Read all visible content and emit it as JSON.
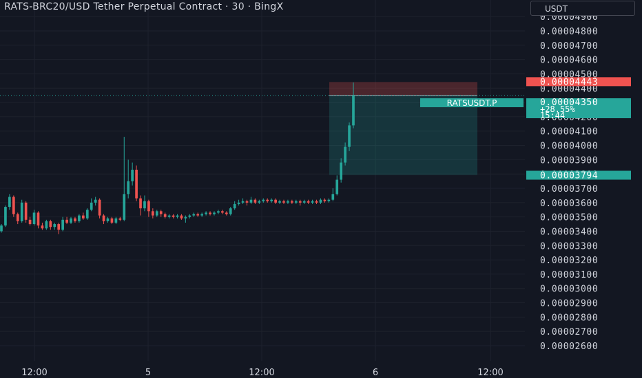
{
  "header": {
    "title": "RATS-BRC20/USD Tether Perpetual Contract · 30 · BingX",
    "currency": "USDT"
  },
  "colors": {
    "background": "#131722",
    "up": "#26a69a",
    "down": "#ef5350",
    "grid": "#1e222d",
    "text": "#d1d4dc"
  },
  "chart_data": {
    "type": "candlestick",
    "ylim": [
      2.6e-05,
      4.925e-05
    ],
    "y_ticks": [
      "0.00004900",
      "0.00004800",
      "0.00004700",
      "0.00004600",
      "0.00004500",
      "0.00004400",
      "0.00004300",
      "0.00004200",
      "0.00004100",
      "0.00004000",
      "0.00003900",
      "0.00003800",
      "0.00003700",
      "0.00003600",
      "0.00003500",
      "0.00003400",
      "0.00003300",
      "0.00003200",
      "0.00003100",
      "0.00003000",
      "0.00002900",
      "0.00002800",
      "0.00002700",
      "0.00002600"
    ],
    "x_ticks": [
      "12:00",
      "5",
      "12:00",
      "6",
      "12:00"
    ],
    "candles": [
      [
        3.4,
        3.44,
        3.45,
        3.39
      ],
      [
        3.44,
        3.57,
        3.58,
        3.43
      ],
      [
        3.57,
        3.64,
        3.66,
        3.55
      ],
      [
        3.64,
        3.52,
        3.65,
        3.5
      ],
      [
        3.52,
        3.47,
        3.53,
        3.45
      ],
      [
        3.47,
        3.6,
        3.62,
        3.46
      ],
      [
        3.6,
        3.48,
        3.61,
        3.46
      ],
      [
        3.48,
        3.45,
        3.5,
        3.44
      ],
      [
        3.45,
        3.53,
        3.55,
        3.44
      ],
      [
        3.53,
        3.44,
        3.54,
        3.42
      ],
      [
        3.44,
        3.42,
        3.46,
        3.41
      ],
      [
        3.42,
        3.47,
        3.48,
        3.41
      ],
      [
        3.47,
        3.43,
        3.48,
        3.41
      ],
      [
        3.43,
        3.45,
        3.46,
        3.41
      ],
      [
        3.45,
        3.41,
        3.46,
        3.38
      ],
      [
        3.41,
        3.48,
        3.5,
        3.4
      ],
      [
        3.48,
        3.46,
        3.5,
        3.45
      ],
      [
        3.46,
        3.49,
        3.5,
        3.45
      ],
      [
        3.49,
        3.47,
        3.5,
        3.46
      ],
      [
        3.47,
        3.51,
        3.52,
        3.46
      ],
      [
        3.51,
        3.49,
        3.53,
        3.48
      ],
      [
        3.49,
        3.55,
        3.56,
        3.48
      ],
      [
        3.55,
        3.6,
        3.63,
        3.54
      ],
      [
        3.6,
        3.62,
        3.64,
        3.58
      ],
      [
        3.62,
        3.51,
        3.63,
        3.49
      ],
      [
        3.51,
        3.47,
        3.52,
        3.45
      ],
      [
        3.47,
        3.49,
        3.5,
        3.46
      ],
      [
        3.49,
        3.46,
        3.5,
        3.45
      ],
      [
        3.46,
        3.49,
        3.5,
        3.45
      ],
      [
        3.49,
        3.48,
        3.5,
        3.47
      ],
      [
        3.48,
        3.66,
        4.06,
        3.47
      ],
      [
        3.66,
        3.75,
        3.9,
        3.63
      ],
      [
        3.75,
        3.83,
        3.88,
        3.72
      ],
      [
        3.83,
        3.63,
        3.86,
        3.61
      ],
      [
        3.63,
        3.56,
        3.65,
        3.51
      ],
      [
        3.56,
        3.61,
        3.65,
        3.54
      ],
      [
        3.61,
        3.54,
        3.62,
        3.5
      ],
      [
        3.54,
        3.51,
        3.56,
        3.49
      ],
      [
        3.51,
        3.54,
        3.55,
        3.5
      ],
      [
        3.54,
        3.52,
        3.55,
        3.5
      ],
      [
        3.52,
        3.5,
        3.53,
        3.49
      ],
      [
        3.5,
        3.51,
        3.52,
        3.49
      ],
      [
        3.51,
        3.5,
        3.52,
        3.49
      ],
      [
        3.5,
        3.51,
        3.52,
        3.49
      ],
      [
        3.51,
        3.49,
        3.52,
        3.48
      ],
      [
        3.49,
        3.5,
        3.51,
        3.46
      ],
      [
        3.5,
        3.51,
        3.52,
        3.49
      ],
      [
        3.51,
        3.52,
        3.53,
        3.5
      ],
      [
        3.52,
        3.51,
        3.53,
        3.5
      ],
      [
        3.51,
        3.52,
        3.53,
        3.5
      ],
      [
        3.52,
        3.53,
        3.54,
        3.51
      ],
      [
        3.53,
        3.52,
        3.54,
        3.51
      ],
      [
        3.52,
        3.53,
        3.54,
        3.51
      ],
      [
        3.53,
        3.54,
        3.55,
        3.52
      ],
      [
        3.54,
        3.53,
        3.55,
        3.52
      ],
      [
        3.53,
        3.52,
        3.54,
        3.51
      ],
      [
        3.52,
        3.56,
        3.57,
        3.51
      ],
      [
        3.56,
        3.59,
        3.61,
        3.55
      ],
      [
        3.59,
        3.6,
        3.62,
        3.58
      ],
      [
        3.6,
        3.61,
        3.63,
        3.59
      ],
      [
        3.61,
        3.6,
        3.62,
        3.58
      ],
      [
        3.6,
        3.62,
        3.64,
        3.59
      ],
      [
        3.62,
        3.6,
        3.63,
        3.59
      ],
      [
        3.6,
        3.61,
        3.62,
        3.59
      ],
      [
        3.61,
        3.62,
        3.63,
        3.6
      ],
      [
        3.62,
        3.61,
        3.63,
        3.6
      ],
      [
        3.61,
        3.62,
        3.63,
        3.6
      ],
      [
        3.62,
        3.6,
        3.63,
        3.59
      ],
      [
        3.6,
        3.61,
        3.62,
        3.59
      ],
      [
        3.61,
        3.6,
        3.62,
        3.59
      ],
      [
        3.6,
        3.61,
        3.62,
        3.59
      ],
      [
        3.61,
        3.6,
        3.62,
        3.59
      ],
      [
        3.6,
        3.61,
        3.62,
        3.59
      ],
      [
        3.61,
        3.6,
        3.62,
        3.58
      ],
      [
        3.6,
        3.61,
        3.62,
        3.59
      ],
      [
        3.61,
        3.6,
        3.62,
        3.59
      ],
      [
        3.6,
        3.61,
        3.62,
        3.59
      ],
      [
        3.61,
        3.6,
        3.62,
        3.59
      ],
      [
        3.6,
        3.62,
        3.63,
        3.59
      ],
      [
        3.62,
        3.61,
        3.63,
        3.6
      ],
      [
        3.61,
        3.62,
        3.63,
        3.6
      ],
      [
        3.62,
        3.66,
        3.7,
        3.61
      ],
      [
        3.66,
        3.76,
        3.79,
        3.65
      ],
      [
        3.76,
        3.88,
        3.91,
        3.74
      ],
      [
        3.88,
        3.99,
        4.02,
        3.86
      ],
      [
        3.99,
        4.14,
        4.16,
        3.96
      ],
      [
        4.14,
        4.35,
        4.44,
        4.12
      ]
    ],
    "position": {
      "entry": "0.00004350",
      "stop_loss": "0.00004443",
      "take_profit": "0.00003794"
    },
    "price_labels": {
      "symbol": "RATSUSDT.P",
      "last_price": "0.00004350",
      "change": "+28.55%",
      "countdown": "15:44"
    }
  }
}
